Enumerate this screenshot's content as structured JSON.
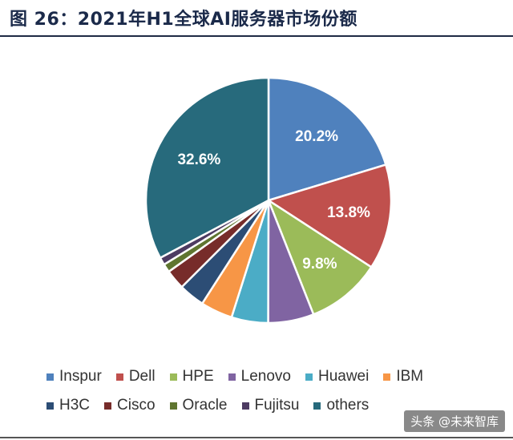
{
  "title": "图 26：2021年H1全球AI服务器市场份额",
  "watermark": "头条 @未来智库",
  "chart_data": {
    "type": "pie",
    "start_angle_deg": 90,
    "direction": "clockwise",
    "slices": [
      {
        "name": "Inspur",
        "value": 20.2,
        "label": "20.2%",
        "color": "#4f81bd"
      },
      {
        "name": "Dell",
        "value": 13.8,
        "label": "13.8%",
        "color": "#c0504d"
      },
      {
        "name": "HPE",
        "value": 9.8,
        "label": "9.8%",
        "color": "#9bbb59"
      },
      {
        "name": "Lenovo",
        "value": 6.0,
        "label": "",
        "color": "#8064a2"
      },
      {
        "name": "Huawei",
        "value": 4.8,
        "label": "",
        "color": "#4bacc6"
      },
      {
        "name": "IBM",
        "value": 4.2,
        "label": "",
        "color": "#f79646"
      },
      {
        "name": "H3C",
        "value": 3.4,
        "label": "",
        "color": "#2c4d75"
      },
      {
        "name": "Cisco",
        "value": 2.6,
        "label": "",
        "color": "#772c2a"
      },
      {
        "name": "Oracle",
        "value": 1.1,
        "label": "",
        "color": "#5f7530"
      },
      {
        "name": "Fujitsu",
        "value": 1.0,
        "label": "",
        "color": "#4d3b62"
      },
      {
        "name": "others",
        "value": 32.6,
        "label": "32.6%",
        "color": "#276a7c"
      }
    ],
    "legend_rows": [
      [
        "Inspur",
        "Dell",
        "HPE",
        "Lenovo",
        "Huawei",
        "IBM"
      ],
      [
        "H3C",
        "Cisco",
        "Oracle",
        "Fujitsu",
        "others"
      ]
    ],
    "legend_position": "bottom"
  }
}
